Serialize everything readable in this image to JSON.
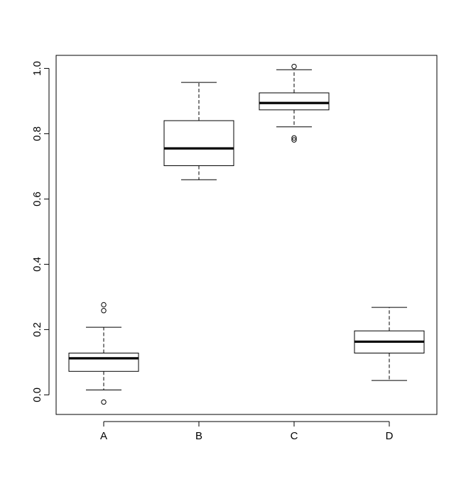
{
  "chart_data": {
    "type": "boxplot",
    "title": "",
    "xlabel": "",
    "ylabel": "",
    "ylim": [
      -0.06,
      1.04
    ],
    "yticks": [
      "0.0",
      "0.2",
      "0.4",
      "0.6",
      "0.8",
      "1.0"
    ],
    "categories": [
      "A",
      "B",
      "C",
      "D"
    ],
    "boxes": [
      {
        "category": "A",
        "whisker_low": 0.015,
        "q1": 0.072,
        "median": 0.112,
        "q3": 0.128,
        "whisker_high": 0.207,
        "outliers": [
          -0.022,
          0.258,
          0.276
        ]
      },
      {
        "category": "B",
        "whisker_low": 0.659,
        "q1": 0.702,
        "median": 0.755,
        "q3": 0.84,
        "whisker_high": 0.957,
        "outliers": []
      },
      {
        "category": "C",
        "whisker_low": 0.821,
        "q1": 0.873,
        "median": 0.894,
        "q3": 0.925,
        "whisker_high": 0.996,
        "outliers": [
          0.781,
          0.787,
          1.006
        ]
      },
      {
        "category": "D",
        "whisker_low": 0.044,
        "q1": 0.128,
        "median": 0.163,
        "q3": 0.196,
        "whisker_high": 0.268,
        "outliers": []
      }
    ],
    "grid": false,
    "legend": "none"
  }
}
